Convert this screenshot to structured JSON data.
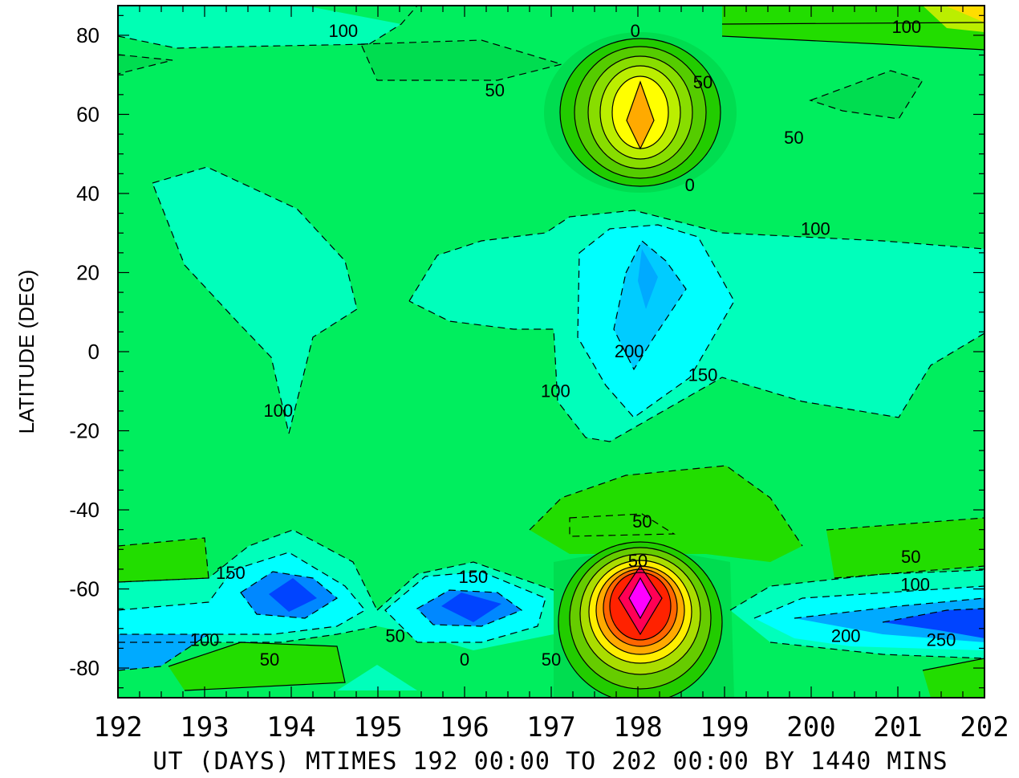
{
  "chart_data": {
    "type": "contour",
    "title": "",
    "xlabel": "UT (DAYS) MTIMES 192 00:00 TO 202 00:00 BY 1440 MINS",
    "ylabel": "LATITUDE (DEG)",
    "xlim": [
      192,
      202
    ],
    "ylim": [
      -87.5,
      87.5
    ],
    "x_ticks": [
      192,
      193,
      194,
      195,
      196,
      197,
      198,
      199,
      200,
      201,
      202
    ],
    "y_ticks": [
      80,
      60,
      40,
      20,
      0,
      -20,
      -40,
      -60,
      -80
    ],
    "contour_interval": 25,
    "negative_contours_dashed": true,
    "colors": {
      "frame": "#000000",
      "background": "#00ff66",
      "low_extreme": "#0000ff",
      "high_extreme": "#ff00ff"
    },
    "contour_labels": [
      {
        "x": 194.6,
        "y": 81,
        "value": "100"
      },
      {
        "x": 197.97,
        "y": 81,
        "value": "0"
      },
      {
        "x": 201.1,
        "y": 82,
        "value": "100"
      },
      {
        "x": 196.35,
        "y": 66,
        "value": "50"
      },
      {
        "x": 198.75,
        "y": 68,
        "value": "50"
      },
      {
        "x": 199.8,
        "y": 54,
        "value": "50"
      },
      {
        "x": 198.6,
        "y": 42,
        "value": "0"
      },
      {
        "x": 200.05,
        "y": 31,
        "value": "100"
      },
      {
        "x": 197.9,
        "y": 0,
        "value": "200"
      },
      {
        "x": 198.75,
        "y": -6,
        "value": "150"
      },
      {
        "x": 197.05,
        "y": -10,
        "value": "100"
      },
      {
        "x": 193.85,
        "y": -15,
        "value": "100"
      },
      {
        "x": 198.05,
        "y": -43,
        "value": "50"
      },
      {
        "x": 198.0,
        "y": -53,
        "value": "50"
      },
      {
        "x": 201.15,
        "y": -52,
        "value": "50"
      },
      {
        "x": 193.3,
        "y": -56,
        "value": "150"
      },
      {
        "x": 196.1,
        "y": -57,
        "value": "150"
      },
      {
        "x": 201.2,
        "y": -59,
        "value": "100"
      },
      {
        "x": 193.0,
        "y": -73,
        "value": "100"
      },
      {
        "x": 195.2,
        "y": -72,
        "value": "50"
      },
      {
        "x": 193.75,
        "y": -78,
        "value": "50"
      },
      {
        "x": 196.0,
        "y": -78,
        "value": "0"
      },
      {
        "x": 197.0,
        "y": -78,
        "value": "50"
      },
      {
        "x": 200.4,
        "y": -72,
        "value": "200"
      },
      {
        "x": 201.5,
        "y": -73,
        "value": "250"
      }
    ]
  }
}
